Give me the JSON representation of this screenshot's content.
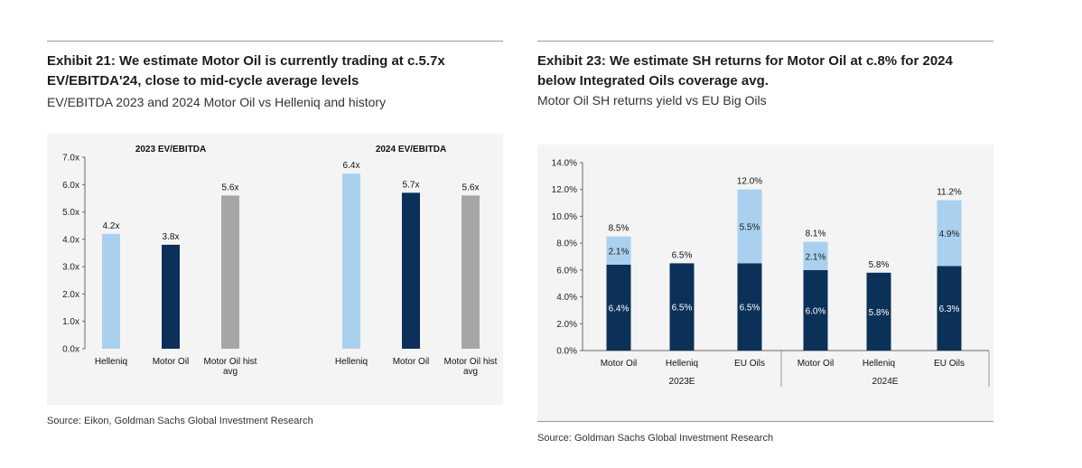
{
  "exhibit21": {
    "title_line1": "Exhibit 21: We estimate Motor Oil is currently trading at c.5.7x",
    "title_line2": "EV/EBITDA'24, close to mid-cycle average levels",
    "subtitle": "EV/EBITDA 2023 and 2024 Motor Oil vs Helleniq and history",
    "source": "Source: Eikon, Goldman Sachs Global Investment Research"
  },
  "exhibit23": {
    "title_line1": "Exhibit 23: We estimate SH returns for Motor Oil at c.8% for 2024",
    "title_line2": "below Integrated Oils coverage avg.",
    "subtitle": "Motor Oil SH returns yield vs EU Big Oils",
    "source": "Source: Goldman Sachs Global Investment Research"
  },
  "chart_data": [
    {
      "type": "bar",
      "group_labels": [
        "2023 EV/EBITDA",
        "2024 EV/EBITDA"
      ],
      "ylim": [
        0,
        7
      ],
      "yticks": [
        "0.0x",
        "1.0x",
        "2.0x",
        "3.0x",
        "4.0x",
        "5.0x",
        "6.0x",
        "7.0x"
      ],
      "bars": [
        {
          "group": 0,
          "category": "Helleniq",
          "value": 4.2,
          "label": "4.2x",
          "color": "#a9d1ef"
        },
        {
          "group": 0,
          "category": "Motor Oil",
          "value": 3.8,
          "label": "3.8x",
          "color": "#0b3158"
        },
        {
          "group": 0,
          "category": "Motor Oil hist avg",
          "value": 5.6,
          "label": "5.6x",
          "color": "#a6a6a6"
        },
        {
          "group": 1,
          "category": "Helleniq",
          "value": 6.4,
          "label": "6.4x",
          "color": "#a9d1ef"
        },
        {
          "group": 1,
          "category": "Motor Oil",
          "value": 5.7,
          "label": "5.7x",
          "color": "#0b3158"
        },
        {
          "group": 1,
          "category": "Motor Oil hist avg",
          "value": 5.6,
          "label": "5.6x",
          "color": "#a6a6a6"
        }
      ]
    },
    {
      "type": "bar",
      "stacked": true,
      "ylim": [
        0,
        14
      ],
      "yticks": [
        "0.0%",
        "2.0%",
        "4.0%",
        "6.0%",
        "8.0%",
        "10.0%",
        "12.0%",
        "14.0%"
      ],
      "colors": {
        "bottom": "#0b3158",
        "top": "#a9d1ef"
      },
      "groups": [
        "2023E",
        "2024E"
      ],
      "bars": [
        {
          "group": 0,
          "category": "Motor Oil",
          "bottom": 6.4,
          "top": 2.1,
          "total": 8.5,
          "bottom_label": "6.4%",
          "top_label": "2.1%",
          "total_label": "8.5%"
        },
        {
          "group": 0,
          "category": "Helleniq",
          "bottom": 6.5,
          "top": 0,
          "total": 6.5,
          "bottom_label": "6.5%",
          "top_label": "",
          "total_label": "6.5%"
        },
        {
          "group": 0,
          "category": "EU Oils",
          "bottom": 6.5,
          "top": 5.5,
          "total": 12.0,
          "bottom_label": "6.5%",
          "top_label": "5.5%",
          "total_label": "12.0%"
        },
        {
          "group": 1,
          "category": "Motor Oil",
          "bottom": 6.0,
          "top": 2.1,
          "total": 8.1,
          "bottom_label": "6.0%",
          "top_label": "2.1%",
          "total_label": "8.1%"
        },
        {
          "group": 1,
          "category": "Helleniq",
          "bottom": 5.8,
          "top": 0,
          "total": 5.8,
          "bottom_label": "5.8%",
          "top_label": "",
          "total_label": "5.8%"
        },
        {
          "group": 1,
          "category": "EU Oils",
          "bottom": 6.3,
          "top": 4.9,
          "total": 11.2,
          "bottom_label": "6.3%",
          "top_label": "4.9%",
          "total_label": "11.2%"
        }
      ]
    }
  ]
}
